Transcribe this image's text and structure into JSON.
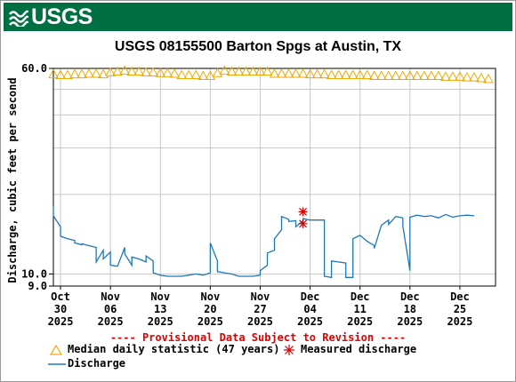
{
  "header": {
    "logo_text": "USGS",
    "brand_color": "#006f41"
  },
  "chart_data": {
    "type": "line",
    "title": "USGS 08155500 Barton Spgs at Austin, TX",
    "ylabel": "Discharge, cubic feet per second",
    "ylim": [
      9.0,
      60.0
    ],
    "yscale": "log",
    "y_tick_labels": [
      "60.0",
      "10.0",
      "9.0"
    ],
    "xlim": [
      "2025-10-29",
      "2025-12-30"
    ],
    "x_ticks": [
      {
        "date": "2025-10-30",
        "label": [
          "Oct",
          "30",
          "2025"
        ]
      },
      {
        "date": "2025-11-06",
        "label": [
          "Nov",
          "06",
          "2025"
        ]
      },
      {
        "date": "2025-11-13",
        "label": [
          "Nov",
          "13",
          "2025"
        ]
      },
      {
        "date": "2025-11-20",
        "label": [
          "Nov",
          "20",
          "2025"
        ]
      },
      {
        "date": "2025-11-27",
        "label": [
          "Nov",
          "27",
          "2025"
        ]
      },
      {
        "date": "2025-12-04",
        "label": [
          "Dec",
          "04",
          "2025"
        ]
      },
      {
        "date": "2025-12-11",
        "label": [
          "Dec",
          "11",
          "2025"
        ]
      },
      {
        "date": "2025-12-18",
        "label": [
          "Dec",
          "18",
          "2025"
        ]
      },
      {
        "date": "2025-12-25",
        "label": [
          "Dec",
          "25",
          "2025"
        ]
      }
    ],
    "grid": true,
    "legend_position": "bottom",
    "provisional_note": "---- Provisional Data Subject to Revision ----",
    "series": [
      {
        "name": "Median daily statistic (47 years)",
        "marker": "triangle-open",
        "color": "#f2a900",
        "points": [
          [
            "2025-10-29",
            57.0
          ],
          [
            "2025-10-30",
            56.6
          ],
          [
            "2025-10-31",
            56.6
          ],
          [
            "2025-11-01",
            57.0
          ],
          [
            "2025-11-02",
            57.0
          ],
          [
            "2025-11-03",
            57.3
          ],
          [
            "2025-11-04",
            57.3
          ],
          [
            "2025-11-05",
            57.0
          ],
          [
            "2025-11-06",
            58.0
          ],
          [
            "2025-11-07",
            58.4
          ],
          [
            "2025-11-08",
            58.9
          ],
          [
            "2025-11-09",
            58.4
          ],
          [
            "2025-11-10",
            58.4
          ],
          [
            "2025-11-11",
            58.0
          ],
          [
            "2025-11-12",
            58.0
          ],
          [
            "2025-11-13",
            57.6
          ],
          [
            "2025-11-14",
            57.6
          ],
          [
            "2025-11-15",
            57.3
          ],
          [
            "2025-11-16",
            56.6
          ],
          [
            "2025-11-17",
            56.6
          ],
          [
            "2025-11-18",
            56.6
          ],
          [
            "2025-11-19",
            56.2
          ],
          [
            "2025-11-20",
            56.2
          ],
          [
            "2025-11-21",
            57.6
          ],
          [
            "2025-11-22",
            58.9
          ],
          [
            "2025-11-23",
            58.4
          ],
          [
            "2025-11-24",
            58.4
          ],
          [
            "2025-11-25",
            58.4
          ],
          [
            "2025-11-26",
            58.4
          ],
          [
            "2025-11-27",
            58.4
          ],
          [
            "2025-11-28",
            58.4
          ],
          [
            "2025-11-29",
            57.3
          ],
          [
            "2025-11-30",
            57.3
          ],
          [
            "2025-12-01",
            57.3
          ],
          [
            "2025-12-02",
            57.3
          ],
          [
            "2025-12-03",
            57.3
          ],
          [
            "2025-12-04",
            57.0
          ],
          [
            "2025-12-05",
            57.0
          ],
          [
            "2025-12-06",
            57.0
          ],
          [
            "2025-12-07",
            56.6
          ],
          [
            "2025-12-08",
            56.6
          ],
          [
            "2025-12-09",
            56.6
          ],
          [
            "2025-12-10",
            56.6
          ],
          [
            "2025-12-11",
            56.6
          ],
          [
            "2025-12-12",
            56.6
          ],
          [
            "2025-12-13",
            56.2
          ],
          [
            "2025-12-14",
            56.2
          ],
          [
            "2025-12-15",
            56.2
          ],
          [
            "2025-12-16",
            56.2
          ],
          [
            "2025-12-17",
            56.2
          ],
          [
            "2025-12-18",
            56.2
          ],
          [
            "2025-12-19",
            56.2
          ],
          [
            "2025-12-20",
            56.2
          ],
          [
            "2025-12-21",
            56.2
          ],
          [
            "2025-12-22",
            56.2
          ],
          [
            "2025-12-23",
            55.8
          ],
          [
            "2025-12-24",
            55.8
          ],
          [
            "2025-12-25",
            55.8
          ],
          [
            "2025-12-26",
            55.5
          ],
          [
            "2025-12-27",
            55.5
          ],
          [
            "2025-12-28",
            55.1
          ],
          [
            "2025-12-29",
            54.7
          ]
        ]
      },
      {
        "name": "Measured discharge",
        "marker": "asterisk",
        "color": "#d40000",
        "points": [
          [
            "2025-12-03",
            17.2
          ],
          [
            "2025-12-03",
            15.5
          ]
        ]
      },
      {
        "name": "Discharge",
        "marker": "line",
        "color": "#1f78b4",
        "points": [
          [
            "2025-10-29",
            17.0
          ],
          [
            "2025-10-29",
            18.0
          ],
          [
            "2025-10-29",
            16.6
          ],
          [
            "2025-10-30",
            15.1
          ],
          [
            "2025-10-30",
            13.9
          ],
          [
            "2025-10-31",
            13.6
          ],
          [
            "2025-11-01",
            13.4
          ],
          [
            "2025-11-01",
            13.1
          ],
          [
            "2025-11-02",
            12.9
          ],
          [
            "2025-11-02",
            13.0
          ],
          [
            "2025-11-03",
            12.8
          ],
          [
            "2025-11-03",
            12.8
          ],
          [
            "2025-11-04",
            12.6
          ],
          [
            "2025-11-04",
            11.1
          ],
          [
            "2025-11-05",
            12.3
          ],
          [
            "2025-11-05",
            11.4
          ],
          [
            "2025-11-06",
            12.1
          ],
          [
            "2025-11-06",
            10.8
          ],
          [
            "2025-11-07",
            10.7
          ],
          [
            "2025-11-08",
            12.6
          ],
          [
            "2025-11-08",
            11.9
          ],
          [
            "2025-11-09",
            10.8
          ],
          [
            "2025-11-09",
            11.6
          ],
          [
            "2025-11-10",
            11.4
          ],
          [
            "2025-11-11",
            11.1
          ],
          [
            "2025-11-11",
            11.7
          ],
          [
            "2025-11-12",
            11.2
          ],
          [
            "2025-11-12",
            10.1
          ],
          [
            "2025-11-13",
            9.9
          ],
          [
            "2025-11-14",
            9.8
          ],
          [
            "2025-11-15",
            9.8
          ],
          [
            "2025-11-16",
            9.8
          ],
          [
            "2025-11-17",
            9.9
          ],
          [
            "2025-11-18",
            10.0
          ],
          [
            "2025-11-19",
            9.9
          ],
          [
            "2025-11-20",
            10.1
          ],
          [
            "2025-11-20",
            12.2
          ],
          [
            "2025-11-20",
            13.1
          ],
          [
            "2025-11-21",
            11.2
          ],
          [
            "2025-11-21",
            10.2
          ],
          [
            "2025-11-22",
            10.1
          ],
          [
            "2025-11-23",
            10.0
          ],
          [
            "2025-11-24",
            9.8
          ],
          [
            "2025-11-25",
            9.8
          ],
          [
            "2025-11-26",
            9.8
          ],
          [
            "2025-11-27",
            9.9
          ],
          [
            "2025-11-27",
            10.3
          ],
          [
            "2025-11-28",
            10.8
          ],
          [
            "2025-11-28",
            12.0
          ],
          [
            "2025-11-29",
            12.3
          ],
          [
            "2025-11-29",
            13.6
          ],
          [
            "2025-11-30",
            14.7
          ],
          [
            "2025-11-30",
            16.5
          ],
          [
            "2025-12-01",
            16.1
          ],
          [
            "2025-12-01",
            15.8
          ],
          [
            "2025-12-02",
            15.9
          ],
          [
            "2025-12-02",
            15.1
          ],
          [
            "2025-12-03",
            15.9
          ],
          [
            "2025-12-03",
            16.2
          ],
          [
            "2025-12-04",
            16.0
          ],
          [
            "2025-12-05",
            16.0
          ],
          [
            "2025-12-06",
            16.0
          ],
          [
            "2025-12-06",
            10.2
          ],
          [
            "2025-12-06",
            9.8
          ],
          [
            "2025-12-07",
            9.7
          ],
          [
            "2025-12-07",
            11.2
          ],
          [
            "2025-12-08",
            11.1
          ],
          [
            "2025-12-09",
            11.0
          ],
          [
            "2025-12-09",
            9.7
          ],
          [
            "2025-12-10",
            9.7
          ],
          [
            "2025-12-10",
            13.6
          ],
          [
            "2025-12-11",
            14.0
          ],
          [
            "2025-12-12",
            13.3
          ],
          [
            "2025-12-13",
            12.8
          ],
          [
            "2025-12-13",
            12.5
          ],
          [
            "2025-12-14",
            15.3
          ],
          [
            "2025-12-15",
            16.0
          ],
          [
            "2025-12-15",
            15.4
          ],
          [
            "2025-12-16",
            16.5
          ],
          [
            "2025-12-17",
            16.3
          ],
          [
            "2025-12-17",
            15.2
          ],
          [
            "2025-12-18",
            10.3
          ],
          [
            "2025-12-18",
            16.4
          ],
          [
            "2025-12-19",
            16.7
          ],
          [
            "2025-12-20",
            16.5
          ],
          [
            "2025-12-21",
            16.6
          ],
          [
            "2025-12-22",
            16.3
          ],
          [
            "2025-12-23",
            16.8
          ],
          [
            "2025-12-24",
            16.4
          ],
          [
            "2025-12-25",
            16.6
          ],
          [
            "2025-12-26",
            16.7
          ],
          [
            "2025-12-27",
            16.6
          ]
        ]
      }
    ]
  }
}
